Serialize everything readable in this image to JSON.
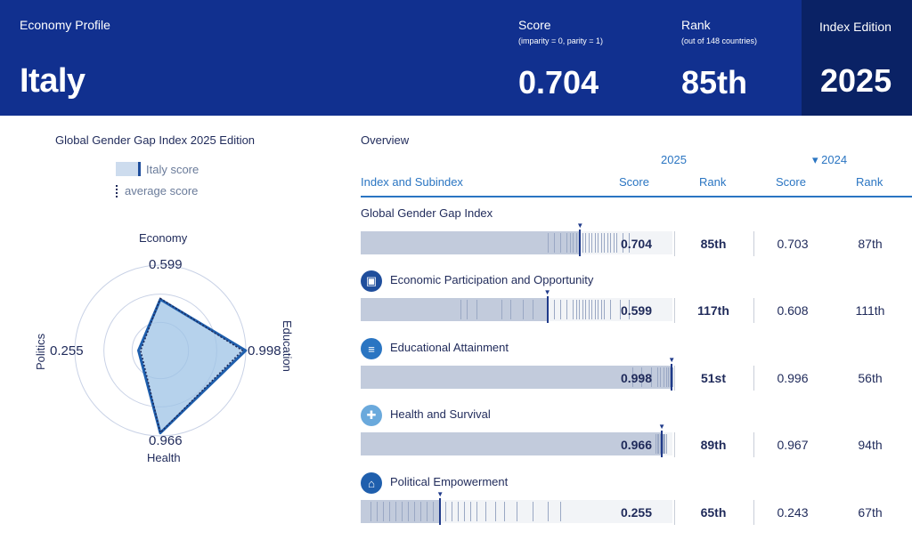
{
  "header": {
    "profile_label": "Economy Profile",
    "country": "Italy",
    "score_title": "Score",
    "score_sub": "(imparity = 0, parity = 1)",
    "score_value": "0.704",
    "rank_title": "Rank",
    "rank_sub": "(out of 148 countries)",
    "rank_value": "85th",
    "edition_title": "Index Edition",
    "edition_value": "2025"
  },
  "radar": {
    "title": "Global Gender Gap Index 2025 Edition",
    "legend_score": "Italy score",
    "legend_avg": "average score",
    "axes": [
      {
        "label": "Economy",
        "value": "0.599"
      },
      {
        "label": "Education",
        "value": "0.998"
      },
      {
        "label": "Health",
        "value": "0.966"
      },
      {
        "label": "Politics",
        "value": "0.255"
      }
    ]
  },
  "overview": {
    "title": "Overview",
    "year_current": "2025",
    "year_prev": "▾ 2024",
    "col_index": "Index and Subindex",
    "col_score": "Score",
    "col_rank": "Rank",
    "col_score_prev": "Score",
    "col_rank_prev": "Rank",
    "rows": [
      {
        "title": "Global Gender Gap Index",
        "score": "0.704",
        "rank": "85th",
        "score_prev": "0.703",
        "rank_prev": "87th"
      },
      {
        "title": "Economic Participation and Opportunity",
        "score": "0.599",
        "rank": "117th",
        "score_prev": "0.608",
        "rank_prev": "111th"
      },
      {
        "title": "Educational Attainment",
        "score": "0.998",
        "rank": "51st",
        "score_prev": "0.996",
        "rank_prev": "56th"
      },
      {
        "title": "Health and Survival",
        "score": "0.966",
        "rank": "89th",
        "score_prev": "0.967",
        "rank_prev": "94th"
      },
      {
        "title": "Political Empowerment",
        "score": "0.255",
        "rank": "65th",
        "score_prev": "0.243",
        "rank_prev": "67th"
      }
    ]
  },
  "chart_data": [
    {
      "type": "radar",
      "title": "Global Gender Gap Index 2025 Edition",
      "categories": [
        "Economy",
        "Education",
        "Health",
        "Politics"
      ],
      "series": [
        {
          "name": "Italy score",
          "values": [
            0.599,
            0.998,
            0.966,
            0.255
          ]
        },
        {
          "name": "average score",
          "values": [
            0.61,
            0.96,
            0.96,
            0.23
          ]
        }
      ],
      "range": [
        0,
        1
      ]
    },
    {
      "type": "bar",
      "categories": [
        "Global Gender Gap Index",
        "Economic Participation and Opportunity",
        "Educational Attainment",
        "Health and Survival",
        "Political Empowerment"
      ],
      "series": [
        {
          "name": "2025",
          "values": [
            0.704,
            0.599,
            0.998,
            0.966,
            0.255
          ]
        },
        {
          "name": "2024",
          "values": [
            0.703,
            0.608,
            0.996,
            0.967,
            0.243
          ]
        }
      ],
      "xlim": [
        0,
        1
      ]
    }
  ],
  "colors": {
    "header_bg": "#11308f",
    "edition_bg": "#0a2265",
    "accent": "#2a75c2",
    "radar_fill": "#9dc3e6",
    "radar_stroke": "#1f5fad"
  },
  "icons": [
    "economy-icon",
    "education-icon",
    "health-icon",
    "politics-icon"
  ]
}
